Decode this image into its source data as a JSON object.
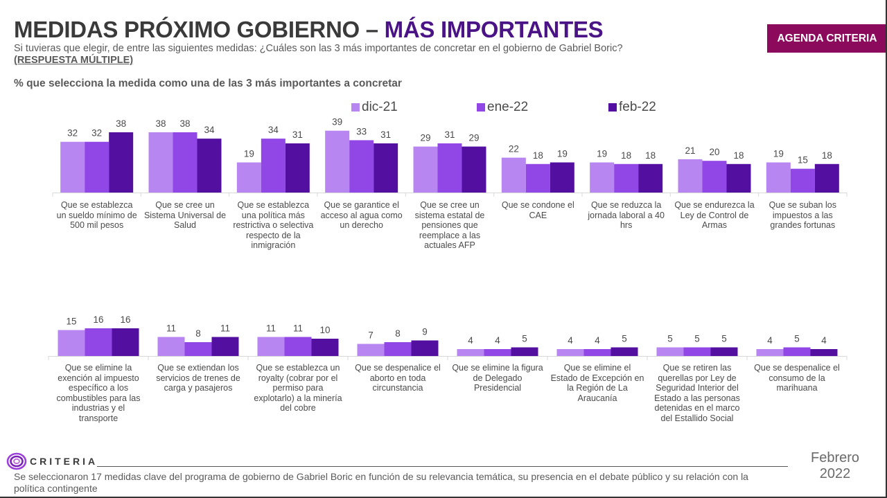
{
  "header": {
    "title_main": "MEDIDAS PRÓXIMO GOBIERNO – ",
    "title_accent": "MÁS IMPORTANTES",
    "question": "Si tuvieras que elegir, de entre las siguientes medidas: ¿Cuáles son las 3 más importantes de concretar en el gobierno de Gabriel Boric?",
    "response_type": "(RESPUESTA MÚLTIPLE)",
    "measure": "% que selecciona la medida como una de las 3 más importantes a concretar",
    "badge": "AGENDA CRITERIA"
  },
  "colors": {
    "dic-21": "#b886f0",
    "ene-22": "#9146e6",
    "feb-22": "#5310a0",
    "badge": "#8c0a5c",
    "title_accent": "#4a1487"
  },
  "chart_data": {
    "type": "bar",
    "title": "% que selecciona la medida como una de las 3 más importantes a concretar",
    "xlabel": "",
    "ylabel": "",
    "ylim": [
      0,
      40
    ],
    "grid": false,
    "legend": {
      "position": "top-center",
      "entries": [
        "dic-21",
        "ene-22",
        "feb-22"
      ]
    },
    "series_names": [
      "dic-21",
      "ene-22",
      "feb-22"
    ],
    "rows": [
      {
        "categories": [
          "Que se establezca un sueldo mínimo de 500 mil pesos",
          "Que se cree un Sistema Universal de Salud",
          "Que se establezca una política más restrictiva o selectiva respecto de la inmigración",
          "Que se garantice el acceso al agua como un derecho",
          "Que se cree un sistema estatal de pensiones que reemplace a las actuales AFP",
          "Que se condone el CAE",
          "Que se reduzca la jornada laboral a 40 hrs",
          "Que se endurezca la Ley de Control de Armas",
          "Que se suban los impuestos a las grandes fortunas"
        ],
        "label_lines": [
          [
            "Que se establezca",
            "un sueldo mínimo de",
            "500 mil pesos"
          ],
          [
            "Que se cree un",
            "Sistema Universal de",
            "Salud"
          ],
          [
            "Que se establezca",
            "una política más",
            "restrictiva o selectiva",
            "respecto de la",
            "inmigración"
          ],
          [
            "Que se garantice el",
            "acceso al agua como",
            "un derecho"
          ],
          [
            "Que se cree un",
            "sistema estatal de",
            "pensiones que",
            "reemplace a las",
            "actuales AFP"
          ],
          [
            "Que se condone el",
            "CAE"
          ],
          [
            "Que se reduzca la",
            "jornada laboral a 40",
            "hrs"
          ],
          [
            "Que se endurezca la",
            "Ley de Control de",
            "Armas"
          ],
          [
            "Que se suban los",
            "impuestos a las",
            "grandes fortunas"
          ]
        ],
        "series": [
          {
            "name": "dic-21",
            "values": [
              32,
              38,
              19,
              39,
              29,
              22,
              19,
              21,
              19
            ]
          },
          {
            "name": "ene-22",
            "values": [
              32,
              38,
              34,
              33,
              31,
              18,
              18,
              20,
              15
            ]
          },
          {
            "name": "feb-22",
            "values": [
              38,
              34,
              31,
              31,
              29,
              19,
              18,
              18,
              18
            ]
          }
        ]
      },
      {
        "categories": [
          "Que se elimine la exención al impuesto específico a los combustibles para las industrias y el transporte",
          "Que se extiendan los servicios de trenes de carga y pasajeros",
          "Que se establezca un royalty (cobrar por el permiso para explotarlo) a la minería del cobre",
          "Que se despenalice el aborto en toda circunstancia",
          "Que se elimine la figura de Delegado Presidencial",
          "Que se elimine el Estado de Excepción en la Región de La Araucanía",
          "Que se retiren las querellas por Ley de Seguridad Interior del Estado a las personas detenidas en el marco del Estallido Social",
          "Que se despenalice el consumo de la marihuana"
        ],
        "label_lines": [
          [
            "Que se elimine la",
            "exención al impuesto",
            "específico a los",
            "combustibles para las",
            "industrias y el",
            "transporte"
          ],
          [
            "Que se extiendan los",
            "servicios de trenes de",
            "carga y pasajeros"
          ],
          [
            "Que se establezca un",
            "royalty (cobrar por el",
            "permiso para",
            "explotarlo) a la minería",
            "del cobre"
          ],
          [
            "Que se despenalice el",
            "aborto en toda",
            "circunstancia"
          ],
          [
            "Que se elimine la figura",
            "de Delegado",
            "Presidencial"
          ],
          [
            "Que se elimine el",
            "Estado de Excepción en",
            "la Región de La",
            "Araucanía"
          ],
          [
            "Que se retiren las",
            "querellas por Ley de",
            "Seguridad Interior del",
            "Estado a las personas",
            "detenidas en el marco",
            "del Estallido Social"
          ],
          [
            "Que se despenalice el",
            "consumo de la",
            "marihuana"
          ]
        ],
        "series": [
          {
            "name": "dic-21",
            "values": [
              15,
              11,
              11,
              7,
              4,
              4,
              5,
              4
            ]
          },
          {
            "name": "ene-22",
            "values": [
              16,
              8,
              11,
              8,
              4,
              4,
              5,
              5
            ]
          },
          {
            "name": "feb-22",
            "values": [
              16,
              11,
              10,
              9,
              5,
              5,
              5,
              4
            ]
          }
        ]
      }
    ]
  },
  "footer": {
    "logo_text": "CRITERIA",
    "note": "Se seleccionaron 17 medidas clave del programa de gobierno de Gabriel Boric en función de su relevancia temática, su presencia en el debate público y su relación con la política contingente",
    "date_month": "Febrero",
    "date_year": "2022"
  }
}
